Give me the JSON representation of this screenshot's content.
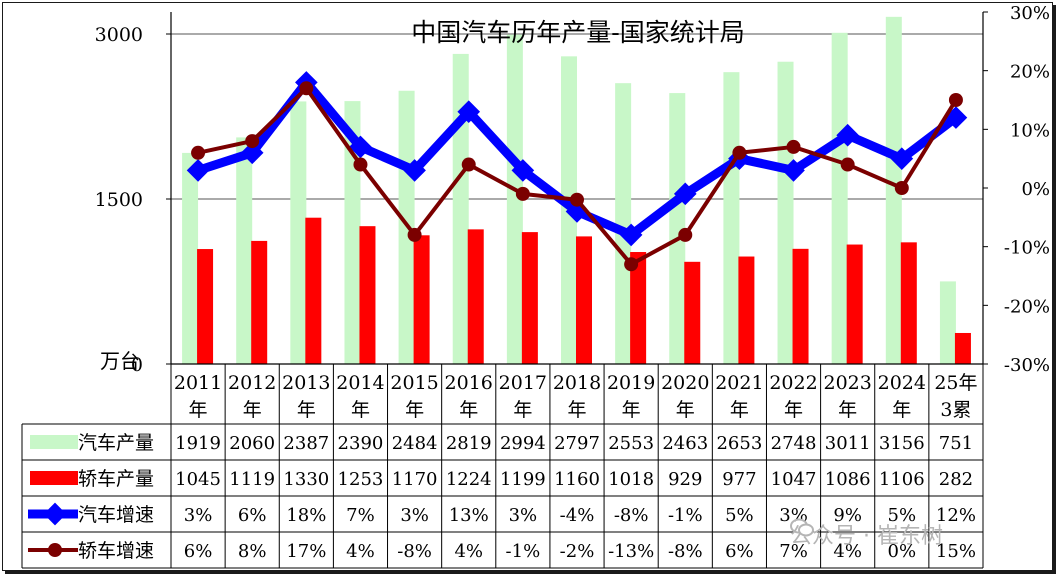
{
  "chart_data": {
    "type": "bar",
    "title": "中国汽车历年产量-国家统计局",
    "y_unit_label": "万台",
    "left_axis": {
      "ticks": [
        "0",
        "1500",
        "3000"
      ],
      "ylim": [
        0,
        3200
      ]
    },
    "right_axis": {
      "ticks": [
        "30%",
        "20%",
        "10%",
        "0%",
        "-10%",
        "-20%",
        "-30%"
      ],
      "ylim": [
        -30,
        30
      ]
    },
    "categories": [
      {
        "line1": "2011",
        "line2": "年"
      },
      {
        "line1": "2012",
        "line2": "年"
      },
      {
        "line1": "2013",
        "line2": "年"
      },
      {
        "line1": "2014",
        "line2": "年"
      },
      {
        "line1": "2015",
        "line2": "年"
      },
      {
        "line1": "2016",
        "line2": "年"
      },
      {
        "line1": "2017",
        "line2": "年"
      },
      {
        "line1": "2018",
        "line2": "年"
      },
      {
        "line1": "2019",
        "line2": "年"
      },
      {
        "line1": "2020",
        "line2": "年"
      },
      {
        "line1": "2021",
        "line2": "年"
      },
      {
        "line1": "2022",
        "line2": "年"
      },
      {
        "line1": "2023",
        "line2": "年"
      },
      {
        "line1": "2024",
        "line2": "年"
      },
      {
        "line1": "25年",
        "line2": "3累"
      }
    ],
    "bar_series": [
      {
        "name": "汽车产量",
        "color": "#c8f7c8",
        "values": [
          1919,
          2060,
          2387,
          2390,
          2484,
          2819,
          2994,
          2797,
          2553,
          2463,
          2653,
          2748,
          3011,
          3156,
          751
        ],
        "labels": [
          "1919",
          "2060",
          "2387",
          "2390",
          "2484",
          "2819",
          "2994",
          "2797",
          "2553",
          "2463",
          "2653",
          "2748",
          "3011",
          "3156",
          "751"
        ]
      },
      {
        "name": "轿车产量",
        "color": "#ff0000",
        "values": [
          1045,
          1119,
          1330,
          1253,
          1170,
          1224,
          1199,
          1160,
          1018,
          929,
          977,
          1047,
          1086,
          1106,
          282
        ],
        "labels": [
          "1045",
          "1119",
          "1330",
          "1253",
          "1170",
          "1224",
          "1199",
          "1160",
          "1018",
          "929",
          "977",
          "1047",
          "1086",
          "1106",
          "282"
        ]
      }
    ],
    "line_series": [
      {
        "name": "汽车增速",
        "color": "#0000ff",
        "values": [
          3,
          6,
          18,
          7,
          3,
          13,
          3,
          -4,
          -8,
          -1,
          5,
          3,
          9,
          5,
          12
        ],
        "labels": [
          "3%",
          "6%",
          "18%",
          "7%",
          "3%",
          "13%",
          "3%",
          "-4%",
          "-8%",
          "-1%",
          "5%",
          "3%",
          "9%",
          "5%",
          "12%"
        ]
      },
      {
        "name": "轿车增速",
        "color": "#7b0000",
        "values": [
          6,
          8,
          17,
          4,
          -8,
          4,
          -1,
          -2,
          -13,
          -8,
          6,
          7,
          4,
          0,
          15
        ],
        "labels": [
          "6%",
          "8%",
          "17%",
          "4%",
          "-8%",
          "4%",
          "-1%",
          "-2%",
          "-13%",
          "-8%",
          "6%",
          "7%",
          "4%",
          "0%",
          "15%"
        ]
      }
    ],
    "gridlines": [
      1500,
      3000
    ],
    "grid": true
  },
  "watermark": "公众号 · 崔东树"
}
